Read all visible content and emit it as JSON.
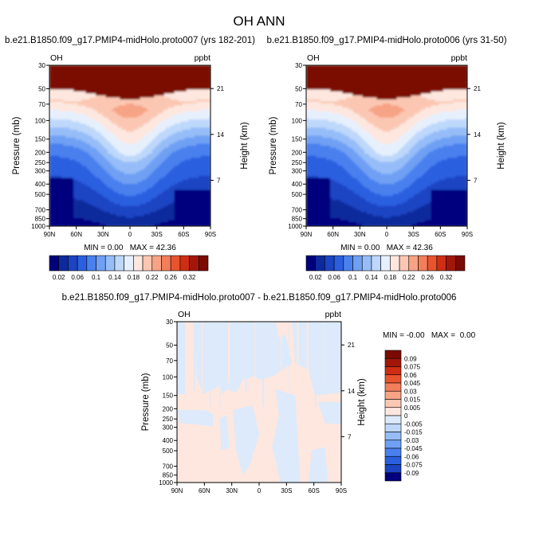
{
  "figure": {
    "title": "OH ANN"
  },
  "chart_data": [
    {
      "type": "heatmap",
      "title": "b.e21.B1850.f09_g17.PMIP4-midHolo.proto007 (yrs 182-201)",
      "left_label": "OH",
      "right_label": "ppbt",
      "xlabel": "",
      "ylabel": "Pressure (mb)",
      "ylabel_right": "Height (km)",
      "x_ticks": [
        "90N",
        "60N",
        "30N",
        "0",
        "30S",
        "60S",
        "90S"
      ],
      "y_ticks": [
        "30",
        "50",
        "70",
        "100",
        "150",
        "200",
        "250",
        "300",
        "400",
        "500",
        "700",
        "850",
        "1000"
      ],
      "y_ticks_right": [
        "21",
        "14",
        "7"
      ],
      "log_pressure_axis": true,
      "stats": {
        "min": "0.00",
        "max": "42.36",
        "text": "MIN = 0.00   MAX = 42.36"
      },
      "colorbar_labels": [
        "0.02",
        "0.06",
        "0.1",
        "0.14",
        "0.18",
        "0.22",
        "0.26",
        "0.32"
      ]
    },
    {
      "type": "heatmap",
      "title": "b.e21.B1850.f09_g17.PMIP4-midHolo.proto006 (yrs 31-50)",
      "left_label": "OH",
      "right_label": "ppbt",
      "xlabel": "",
      "ylabel": "Pressure (mb)",
      "ylabel_right": "Height (km)",
      "x_ticks": [
        "90N",
        "60N",
        "30N",
        "0",
        "30S",
        "60S",
        "90S"
      ],
      "y_ticks": [
        "30",
        "50",
        "70",
        "100",
        "150",
        "200",
        "250",
        "300",
        "400",
        "500",
        "700",
        "850",
        "1000"
      ],
      "y_ticks_right": [
        "21",
        "14",
        "7"
      ],
      "log_pressure_axis": true,
      "stats": {
        "min": "0.00",
        "max": "42.36",
        "text": "MIN = 0.00   MAX = 42.36"
      },
      "colorbar_labels": [
        "0.02",
        "0.06",
        "0.1",
        "0.14",
        "0.18",
        "0.22",
        "0.26",
        "0.32"
      ]
    },
    {
      "type": "heatmap",
      "title": "b.e21.B1850.f09_g17.PMIP4-midHolo.proto007 - b.e21.B1850.f09_g17.PMIP4-midHolo.proto006",
      "left_label": "OH",
      "right_label": "ppbt",
      "xlabel": "",
      "ylabel": "Pressure (mb)",
      "ylabel_right": "Height (km)",
      "x_ticks": [
        "90N",
        "60N",
        "30N",
        "0",
        "30S",
        "60S",
        "90S"
      ],
      "y_ticks": [
        "30",
        "50",
        "70",
        "100",
        "150",
        "200",
        "250",
        "300",
        "400",
        "500",
        "700",
        "850",
        "1000"
      ],
      "y_ticks_right": [
        "21",
        "14",
        "7"
      ],
      "log_pressure_axis": true,
      "stats": {
        "min": "-0.00",
        "max": "0.00",
        "text": "MIN = -0.00   MAX =  0.00"
      },
      "colorbar_labels": [
        "0.09",
        "0.075",
        "0.06",
        "0.045",
        "0.03",
        "0.015",
        "0.005",
        "0",
        "-0.005",
        "-0.015",
        "-0.03",
        "-0.045",
        "-0.06",
        "-0.075",
        "-0.09"
      ]
    }
  ],
  "colors": {
    "abs_scale": [
      "#00007f",
      "#0d2a9c",
      "#1c44c3",
      "#2a5fe0",
      "#4a80ee",
      "#6fa0f4",
      "#96bdf8",
      "#bed8fb",
      "#e6f0fd",
      "#fde7df",
      "#fbc7b3",
      "#f7a385",
      "#f27e5a",
      "#e8542e",
      "#cf2e14",
      "#a3170b",
      "#7a0b03"
    ],
    "diff_scale": [
      "#7a0b03",
      "#a3170b",
      "#cf2e14",
      "#e8542e",
      "#f27e5a",
      "#f7a385",
      "#fbc7b3",
      "#fde7df",
      "#dceafb",
      "#bed8fb",
      "#96bdf8",
      "#6fa0f4",
      "#4a80ee",
      "#2a5fe0",
      "#1c44c3",
      "#00007f"
    ],
    "diff_pos": "#fde7df",
    "diff_neg": "#dceafb"
  }
}
